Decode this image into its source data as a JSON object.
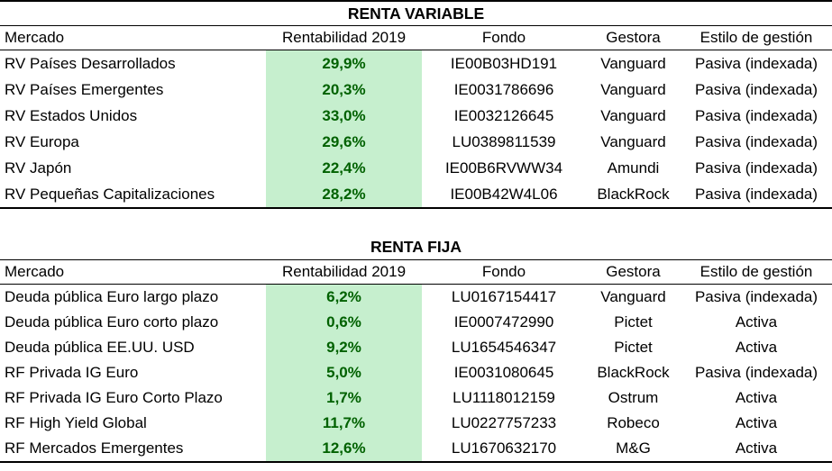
{
  "colors": {
    "highlight_fill": "#C6EFCE",
    "highlight_text": "#006100",
    "border": "#000000",
    "body_text": "#000000"
  },
  "chart_data": [
    {
      "type": "table",
      "title": "RENTA VARIABLE",
      "columns": [
        "Mercado",
        "Rentabilidad 2019",
        "Fondo",
        "Gestora",
        "Estilo de gestión"
      ],
      "highlighted_column": "Rentabilidad 2019",
      "rows": [
        [
          "RV Países Desarrollados",
          "29,9%",
          "IE00B03HD191",
          "Vanguard",
          "Pasiva (indexada)"
        ],
        [
          "RV Países Emergentes",
          "20,3%",
          "IE0031786696",
          "Vanguard",
          "Pasiva (indexada)"
        ],
        [
          "RV Estados Unidos",
          "33,0%",
          "IE0032126645",
          "Vanguard",
          "Pasiva (indexada)"
        ],
        [
          "RV Europa",
          "29,6%",
          "LU0389811539",
          "Vanguard",
          "Pasiva (indexada)"
        ],
        [
          "RV Japón",
          "22,4%",
          "IE00B6RVWW34",
          "Amundi",
          "Pasiva (indexada)"
        ],
        [
          "RV Pequeñas Capitalizaciones",
          "28,2%",
          "IE00B42W4L06",
          "BlackRock",
          "Pasiva (indexada)"
        ]
      ],
      "rentabilidad_values_pct": [
        29.9,
        20.3,
        33.0,
        29.6,
        22.4,
        28.2
      ]
    },
    {
      "type": "table",
      "title": "RENTA FIJA",
      "columns": [
        "Mercado",
        "Rentabilidad 2019",
        "Fondo",
        "Gestora",
        "Estilo de gestión"
      ],
      "highlighted_column": "Rentabilidad 2019",
      "rows": [
        [
          "Deuda pública Euro largo plazo",
          "6,2%",
          "LU0167154417",
          "Vanguard",
          "Pasiva (indexada)"
        ],
        [
          "Deuda pública Euro corto plazo",
          "0,6%",
          "IE0007472990",
          "Pictet",
          "Activa"
        ],
        [
          "Deuda pública EE.UU. USD",
          "9,2%",
          "LU1654546347",
          "Pictet",
          "Activa"
        ],
        [
          "RF Privada IG Euro",
          "5,0%",
          "IE0031080645",
          "BlackRock",
          "Pasiva (indexada)"
        ],
        [
          "RF Privada IG Euro Corto Plazo",
          "1,7%",
          "LU1118012159",
          "Ostrum",
          "Activa"
        ],
        [
          "RF High Yield Global",
          "11,7%",
          "LU0227757233",
          "Robeco",
          "Activa"
        ],
        [
          "RF Mercados Emergentes",
          "12,6%",
          "LU1670632170",
          "M&G",
          "Activa"
        ]
      ],
      "rentabilidad_values_pct": [
        6.2,
        0.6,
        9.2,
        5.0,
        1.7,
        11.7,
        12.6
      ]
    }
  ]
}
